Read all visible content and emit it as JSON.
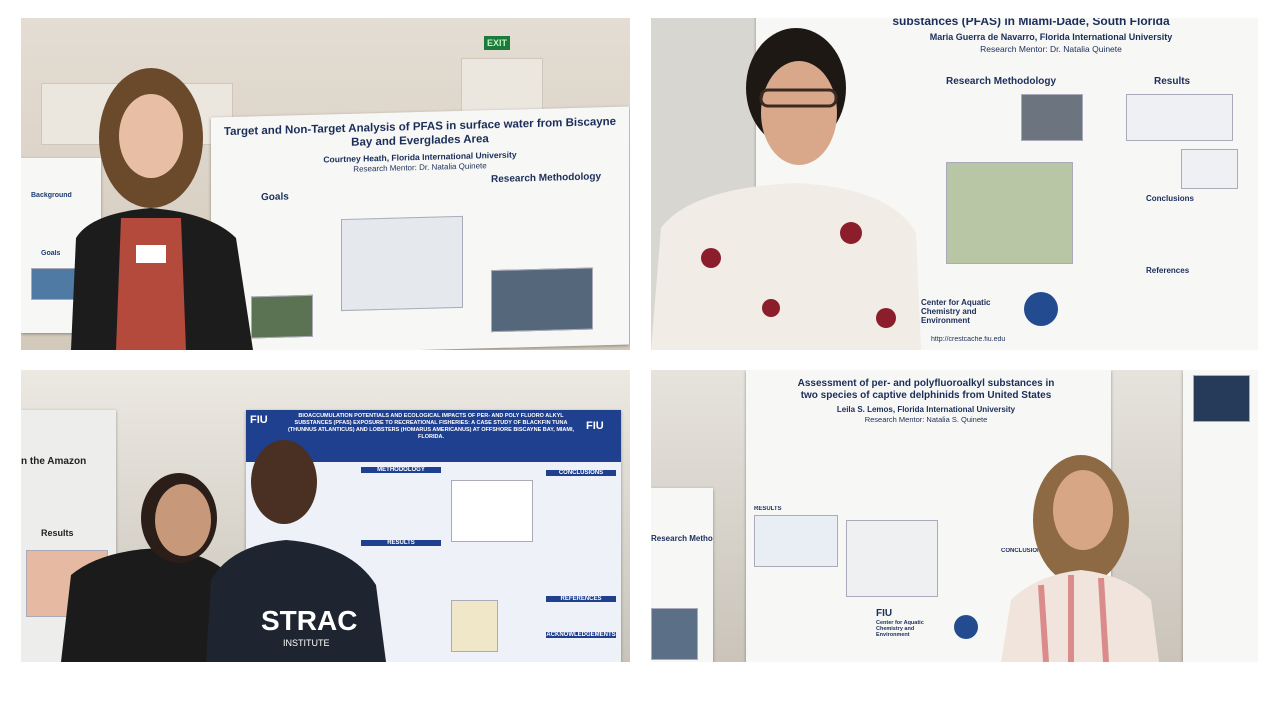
{
  "photos": [
    {
      "sign": "EXIT",
      "side_poster": {
        "sections": [
          "Background",
          "Goals"
        ]
      },
      "poster": {
        "title": "Target and Non-Target Analysis of PFAS in surface water from Biscayne Bay and Everglades Area",
        "author": "Courtney Heath, Florida International University",
        "mentor": "Research Mentor: Dr. Natalia Quinete",
        "sections": [
          "Goals",
          "Research Methodology"
        ]
      }
    },
    {
      "poster": {
        "title": "substances (PFAS) in Miami-Dade, South Florida",
        "author": "Maria Guerra de Navarro, Florida International University",
        "mentor": "Research Mentor: Dr. Natalia Quinete",
        "sections": [
          "Research Methodology",
          "Results",
          "Conclusions",
          "References"
        ],
        "center": "Center for Aquatic Chemistry and Environment",
        "url": "http://crestcache.fiu.edu"
      }
    },
    {
      "side_poster": {
        "title": "n the Amazon",
        "sections": [
          "Results"
        ]
      },
      "poster": {
        "logo": "FIU",
        "title": "BIOACCUMULATION POTENTIALS AND ECOLOGICAL IMPACTS OF PER- AND POLY FLUORO ALKYL SUBSTANCES (PFAS) EXPOSURE TO RECREATIONAL FISHERIES: A CASE STUDY OF BLACKFIN TUNA (THUNNUS ATLANTICUS) AND LOBSTERS (HOMARUS AMERICANUS) AT OFFSHORE BISCAYNE BAY, MIAMI, FLORIDA.",
        "sections": [
          "METHODOLOGY",
          "RESULTS",
          "CONCLUSIONS",
          "REFERENCES",
          "ACKNOWLEDGEMENTS"
        ]
      },
      "shirt_text": "STRAC",
      "shirt_subtext": "INSTITUTE"
    },
    {
      "side_poster": {
        "sections": [
          "Research Methodology"
        ]
      },
      "poster": {
        "title": "Assessment of per- and polyfluoroalkyl substances in two species of captive delphinids from United States",
        "author": "Leila S. Lemos, Florida International University",
        "mentor": "Research Mentor: Natalia S. Quinete",
        "sections": [
          "RESULTS",
          "CONCLUSIONS"
        ],
        "logo": "FIU",
        "center": "Center for Aquatic Chemistry and Environment"
      }
    }
  ]
}
